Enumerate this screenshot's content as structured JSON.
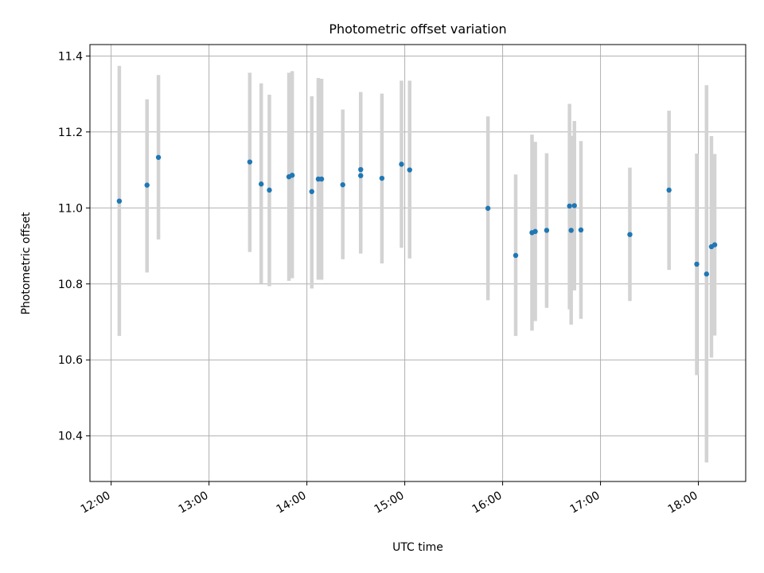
{
  "chart_data": {
    "type": "scatter",
    "title": "Photometric offset variation",
    "xlabel": "UTC time",
    "ylabel": "Photometric offset",
    "xlim": [
      "11:47",
      "18:29"
    ],
    "ylim": [
      10.28,
      11.43
    ],
    "x_ticks": [
      "12:00",
      "13:00",
      "14:00",
      "15:00",
      "16:00",
      "17:00",
      "18:00"
    ],
    "y_ticks": [
      10.4,
      10.6,
      10.8,
      11.0,
      11.2,
      11.4
    ],
    "y_tick_labels": [
      "10.4",
      "10.6",
      "10.8",
      "11.0",
      "11.2",
      "11.4"
    ],
    "grid": true,
    "colors": {
      "points": "#1f77b4",
      "errorbars": "#d3d3d3",
      "grid": "#b0b0b0"
    },
    "points": [
      {
        "t": "12:05",
        "y": 11.018,
        "lo": 10.663,
        "hi": 11.374
      },
      {
        "t": "12:22",
        "y": 11.06,
        "lo": 10.83,
        "hi": 11.286
      },
      {
        "t": "12:29",
        "y": 11.133,
        "lo": 10.917,
        "hi": 11.35
      },
      {
        "t": "13:25",
        "y": 11.121,
        "lo": 10.884,
        "hi": 11.356
      },
      {
        "t": "13:32",
        "y": 11.063,
        "lo": 10.801,
        "hi": 11.328
      },
      {
        "t": "13:37",
        "y": 11.047,
        "lo": 10.794,
        "hi": 11.298
      },
      {
        "t": "13:49",
        "y": 11.082,
        "lo": 10.808,
        "hi": 11.356
      },
      {
        "t": "13:51",
        "y": 11.086,
        "lo": 10.815,
        "hi": 11.36
      },
      {
        "t": "14:03",
        "y": 11.043,
        "lo": 10.788,
        "hi": 11.294
      },
      {
        "t": "14:07",
        "y": 11.076,
        "lo": 10.811,
        "hi": 11.342
      },
      {
        "t": "14:09",
        "y": 11.076,
        "lo": 10.811,
        "hi": 11.34
      },
      {
        "t": "14:22",
        "y": 11.061,
        "lo": 10.865,
        "hi": 11.259
      },
      {
        "t": "14:33",
        "y": 11.085,
        "lo": 10.88,
        "hi": 11.29
      },
      {
        "t": "14:33",
        "y": 11.101,
        "lo": 10.892,
        "hi": 11.305
      },
      {
        "t": "14:46",
        "y": 11.078,
        "lo": 10.854,
        "hi": 11.301
      },
      {
        "t": "14:58",
        "y": 11.115,
        "lo": 10.895,
        "hi": 11.335
      },
      {
        "t": "15:03",
        "y": 11.1,
        "lo": 10.867,
        "hi": 11.335
      },
      {
        "t": "15:51",
        "y": 10.999,
        "lo": 10.757,
        "hi": 11.241
      },
      {
        "t": "16:08",
        "y": 10.875,
        "lo": 10.663,
        "hi": 11.088
      },
      {
        "t": "16:18",
        "y": 10.935,
        "lo": 10.677,
        "hi": 11.193
      },
      {
        "t": "16:20",
        "y": 10.938,
        "lo": 10.702,
        "hi": 11.174
      },
      {
        "t": "16:27",
        "y": 10.941,
        "lo": 10.737,
        "hi": 11.144
      },
      {
        "t": "16:41",
        "y": 11.005,
        "lo": 10.733,
        "hi": 11.274
      },
      {
        "t": "16:42",
        "y": 10.941,
        "lo": 10.693,
        "hi": 11.19
      },
      {
        "t": "16:44",
        "y": 11.006,
        "lo": 10.783,
        "hi": 11.229
      },
      {
        "t": "16:48",
        "y": 10.942,
        "lo": 10.708,
        "hi": 11.176
      },
      {
        "t": "17:18",
        "y": 10.93,
        "lo": 10.755,
        "hi": 11.106
      },
      {
        "t": "17:42",
        "y": 11.047,
        "lo": 10.837,
        "hi": 11.256
      },
      {
        "t": "17:59",
        "y": 10.852,
        "lo": 10.56,
        "hi": 11.143
      },
      {
        "t": "18:05",
        "y": 10.826,
        "lo": 10.33,
        "hi": 11.323
      },
      {
        "t": "18:08",
        "y": 10.898,
        "lo": 10.606,
        "hi": 11.189
      },
      {
        "t": "18:10",
        "y": 10.903,
        "lo": 10.664,
        "hi": 11.142
      }
    ]
  }
}
